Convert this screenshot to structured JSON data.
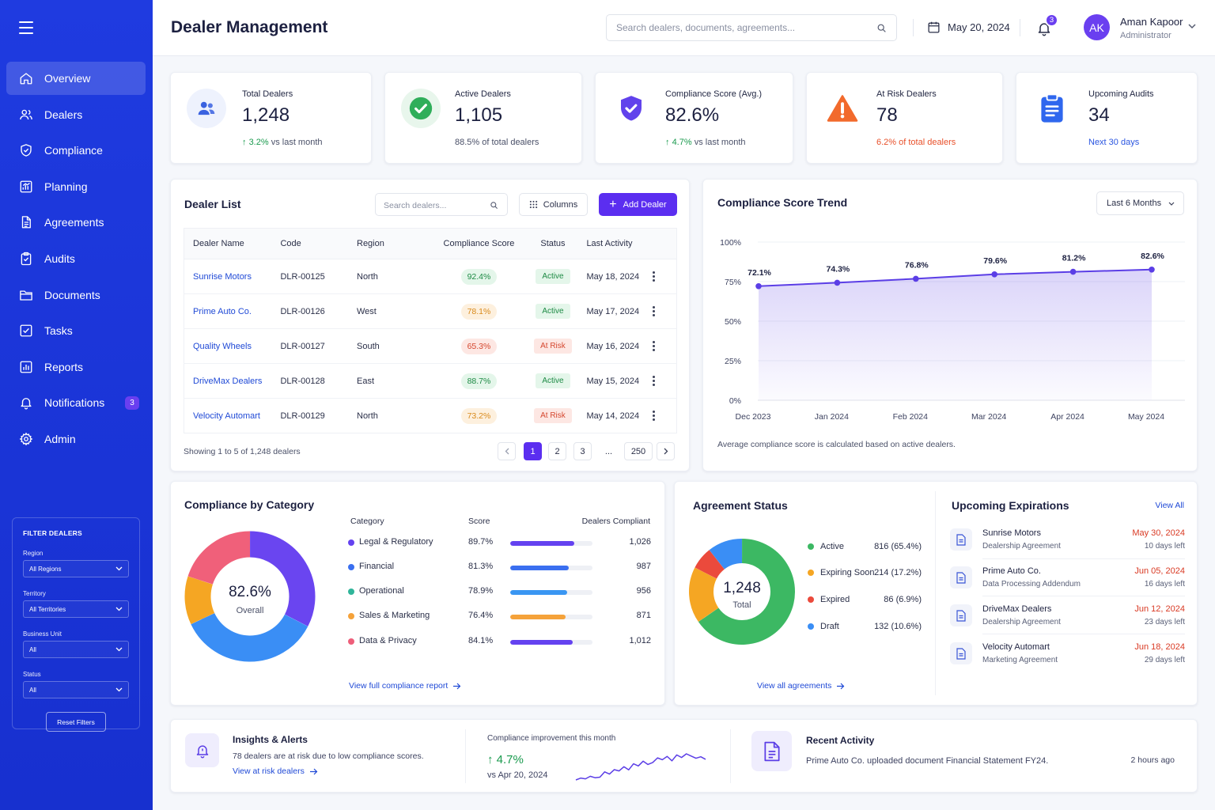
{
  "sidebar": {
    "items": [
      {
        "label": "Overview",
        "icon": "home-icon"
      },
      {
        "label": "Dealers",
        "icon": "users-icon"
      },
      {
        "label": "Compliance",
        "icon": "shield-icon"
      },
      {
        "label": "Planning",
        "icon": "chart-icon"
      },
      {
        "label": "Agreements",
        "icon": "document-icon"
      },
      {
        "label": "Audits",
        "icon": "clipboard-icon"
      },
      {
        "label": "Documents",
        "icon": "folder-icon"
      },
      {
        "label": "Tasks",
        "icon": "checkbox-icon"
      },
      {
        "label": "Reports",
        "icon": "bar-chart-icon"
      },
      {
        "label": "Notifications",
        "icon": "bell-icon",
        "badge": "3"
      },
      {
        "label": "Admin",
        "icon": "gear-icon"
      }
    ],
    "filters": {
      "title": "FILTER DEALERS",
      "region_label": "Region",
      "region_value": "All Regions",
      "territory_label": "Territory",
      "territory_value": "All Territories",
      "unit_label": "Business Unit",
      "unit_value": "All",
      "status_label": "Status",
      "status_value": "All",
      "reset_label": "Reset Filters"
    }
  },
  "header": {
    "title": "Dealer Management",
    "search_placeholder": "Search dealers, documents, agreements...",
    "date": "May 20, 2024",
    "notif_count": "3",
    "avatar_initials": "AK",
    "user_name": "Aman Kapoor",
    "user_role": "Administrator"
  },
  "stats": [
    {
      "label": "Total Dealers",
      "value": "1,248",
      "delta": "3.2%",
      "sub": "vs last month"
    },
    {
      "label": "Active Dealers",
      "value": "1,105",
      "sub": "88.5% of total dealers"
    },
    {
      "label": "Compliance Score (Avg.)",
      "value": "82.6%",
      "delta": "4.7%",
      "sub": "vs last month"
    },
    {
      "label": "At Risk Dealers",
      "value": "78",
      "sub": "6.2% of total dealers"
    },
    {
      "label": "Upcoming Audits",
      "value": "34",
      "sub": "Next 30 days"
    }
  ],
  "dealer_list": {
    "title": "Dealer List",
    "search_placeholder": "Search dealers...",
    "columns_label": "Columns",
    "add_label": "Add Dealer",
    "headers": [
      "Dealer Name",
      "Code",
      "Region",
      "Compliance Score",
      "Status",
      "Last Activity"
    ],
    "rows": [
      {
        "name": "Sunrise Motors",
        "code": "DLR-00125",
        "region": "North",
        "score": "92.4%",
        "status": "Active",
        "activity": "May 18, 2024"
      },
      {
        "name": "Prime Auto Co.",
        "code": "DLR-00126",
        "region": "West",
        "score": "78.1%",
        "status": "Active",
        "activity": "May 17, 2024"
      },
      {
        "name": "Quality Wheels",
        "code": "DLR-00127",
        "region": "South",
        "score": "65.3%",
        "status": "At Risk",
        "activity": "May 16, 2024"
      },
      {
        "name": "DriveMax Dealers",
        "code": "DLR-00128",
        "region": "East",
        "score": "88.7%",
        "status": "Active",
        "activity": "May 15, 2024"
      },
      {
        "name": "Velocity Automart",
        "code": "DLR-00129",
        "region": "North",
        "score": "73.2%",
        "status": "At Risk",
        "activity": "May 14, 2024"
      }
    ],
    "showing": "Showing 1 to 5 of 1,248 dealers",
    "pages": [
      "1",
      "2",
      "3",
      "...",
      "250"
    ]
  },
  "trend": {
    "title": "Compliance Score Trend",
    "range_label": "Last 6 Months",
    "footnote": "Average compliance score is calculated based on active dealers."
  },
  "chart_data": [
    {
      "type": "area",
      "title": "Compliance Score Trend",
      "categories": [
        "Dec 2023",
        "Jan 2024",
        "Feb 2024",
        "Mar 2024",
        "Apr 2024",
        "May 2024"
      ],
      "values": [
        72.1,
        74.3,
        76.8,
        79.6,
        81.2,
        82.6
      ],
      "value_labels": [
        "72.1%",
        "74.3%",
        "76.8%",
        "79.6%",
        "81.2%",
        "82.6%"
      ],
      "y_ticks": [
        "100%",
        "75%",
        "50%",
        "25%",
        "0%"
      ],
      "ylim": [
        0,
        100
      ],
      "grid": true,
      "color": "#5b3ee6"
    },
    {
      "type": "pie",
      "title": "Compliance by Category",
      "categories": [
        "Legal & Regulatory",
        "Financial",
        "Operational",
        "Sales & Marketing",
        "Data & Privacy"
      ],
      "values": [
        89.7,
        81.3,
        78.9,
        76.4,
        84.1
      ],
      "center_value": "82.6%",
      "center_label": "Overall"
    },
    {
      "type": "pie",
      "title": "Agreement Status",
      "categories": [
        "Active",
        "Expiring Soon",
        "Expired",
        "Draft"
      ],
      "values": [
        816,
        214,
        86,
        132
      ],
      "center_value": "1,248",
      "center_label": "Total"
    },
    {
      "type": "line",
      "title": "Compliance improvement this month",
      "values": [
        2,
        3,
        2.6,
        4,
        3.2,
        3.5,
        6.4,
        5.2,
        7.6,
        6.9,
        9.2,
        7.5,
        10.8,
        9.6,
        12.2,
        10.4,
        11.5,
        14,
        13,
        14.8,
        12.4,
        15.6,
        14.2,
        16.2,
        15,
        13.8,
        14.6,
        13.2
      ]
    }
  ],
  "category": {
    "title": "Compliance by Category",
    "head_category": "Category",
    "head_score": "Score",
    "head_compliant": "Dealers Compliant",
    "rows": [
      {
        "name": "Legal & Regulatory",
        "score": "89.7%",
        "count": "1,026",
        "fill": 0.78,
        "color": "#6442f0"
      },
      {
        "name": "Financial",
        "score": "81.3%",
        "count": "987",
        "fill": 0.71,
        "color": "#3a6ff0"
      },
      {
        "name": "Operational",
        "score": "78.9%",
        "count": "956",
        "fill": 0.69,
        "color": "#3a96f2"
      },
      {
        "name": "Sales & Marketing",
        "score": "76.4%",
        "count": "871",
        "fill": 0.67,
        "color": "#f5a23a"
      },
      {
        "name": "Data & Privacy",
        "score": "84.1%",
        "count": "1,012",
        "fill": 0.76,
        "color": "#6442f0"
      }
    ],
    "donut_colors": [
      "#6a45f0",
      "#3a8ef5",
      "#f5a623",
      "#f0607a"
    ],
    "link": "View full compliance report"
  },
  "agreements": {
    "title": "Agreement Status",
    "rows": [
      {
        "name": "Active",
        "value": "816 (65.4%)",
        "color": "#3cb863"
      },
      {
        "name": "Expiring Soon",
        "value": "214 (17.2%)",
        "color": "#f5a623"
      },
      {
        "name": "Expired",
        "value": "86 (6.9%)",
        "color": "#eb4a3c"
      },
      {
        "name": "Draft",
        "value": "132 (10.6%)",
        "color": "#3a8ef5"
      }
    ],
    "link": "View all agreements"
  },
  "expirations": {
    "title": "Upcoming Expirations",
    "view_all": "View All",
    "rows": [
      {
        "name": "Sunrise Motors",
        "type": "Dealership Agreement",
        "date": "May 30, 2024",
        "left": "10 days left"
      },
      {
        "name": "Prime Auto Co.",
        "type": "Data Processing Addendum",
        "date": "Jun 05, 2024",
        "left": "16 days left"
      },
      {
        "name": "DriveMax Dealers",
        "type": "Dealership Agreement",
        "date": "Jun 12, 2024",
        "left": "23 days left"
      },
      {
        "name": "Velocity Automart",
        "type": "Marketing Agreement",
        "date": "Jun 18, 2024",
        "left": "29 days left"
      }
    ]
  },
  "insights": {
    "title": "Insights & Alerts",
    "text": "78 dealers are at risk due to low compliance scores.",
    "link": "View at risk dealers",
    "improve_label": "Compliance improvement this month",
    "improve_value": "4.7%",
    "improve_sub": "vs Apr 20, 2024"
  },
  "activity": {
    "title": "Recent Activity",
    "text": "Prime Auto Co. uploaded document Financial Statement FY24.",
    "time": "2 hours ago"
  }
}
